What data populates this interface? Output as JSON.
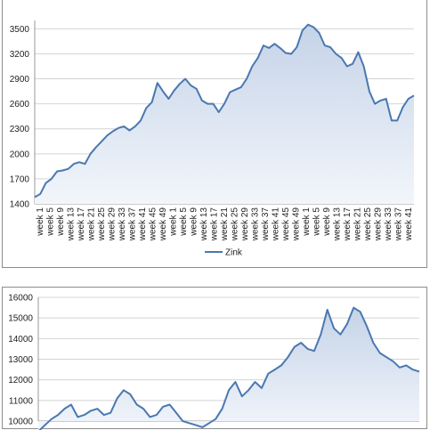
{
  "colors": {
    "line": "#4a78b0",
    "area_top": "#c5d3e8",
    "area_bottom": "#f2f6fb",
    "grid": "#d4d4d4",
    "axis": "#9a9a9a"
  },
  "chart_data": [
    {
      "type": "area",
      "title": "",
      "xlabel": "",
      "ylabel": "",
      "ylim": [
        1400,
        3600
      ],
      "yticks": [
        1400,
        1700,
        2000,
        2300,
        2600,
        2900,
        3200,
        3500
      ],
      "grid": true,
      "legend": "bottom",
      "x_tick_labels": [
        "week  1",
        "week  5",
        "week  9",
        "week  13",
        "week  17",
        "week  21",
        "week  25",
        "week  29",
        "week  33",
        "week  37",
        "week  41",
        "week  45",
        "week  49",
        "week  1",
        "week  5",
        "week  9",
        "week  13",
        "week  17",
        "week  21",
        "week  25",
        "week  29",
        "week  33",
        "week  37",
        "week  41",
        "week  45",
        "week  49",
        "week  1",
        "week  5",
        "week  9",
        "week  13",
        "week  17",
        "week  21",
        "week  25",
        "week  29",
        "week  33",
        "week  37",
        "week  41"
      ],
      "series": [
        {
          "name": "Zink",
          "values": [
            1480,
            1520,
            1650,
            1700,
            1790,
            1800,
            1820,
            1880,
            1900,
            1880,
            2000,
            2080,
            2150,
            2220,
            2270,
            2310,
            2330,
            2280,
            2330,
            2400,
            2550,
            2620,
            2850,
            2750,
            2660,
            2760,
            2840,
            2900,
            2820,
            2780,
            2640,
            2600,
            2600,
            2500,
            2600,
            2740,
            2770,
            2800,
            2900,
            3050,
            3150,
            3300,
            3270,
            3320,
            3270,
            3210,
            3200,
            3280,
            3480,
            3550,
            3520,
            3450,
            3300,
            3280,
            3200,
            3150,
            3050,
            3080,
            3220,
            3050,
            2750,
            2600,
            2640,
            2660,
            2400,
            2400,
            2560,
            2660,
            2700
          ]
        }
      ]
    },
    {
      "type": "area",
      "title": "",
      "xlabel": "",
      "ylabel": "",
      "ylim": [
        10000,
        16000
      ],
      "yticks": [
        10000,
        11000,
        12000,
        13000,
        14000,
        15000,
        16000
      ],
      "grid": true,
      "series": [
        {
          "values": [
            9500,
            9800,
            10100,
            10300,
            10600,
            10800,
            10200,
            10300,
            10500,
            10600,
            10300,
            10400,
            11100,
            11500,
            11300,
            10800,
            10600,
            10200,
            10300,
            10700,
            10800,
            10400,
            10000,
            9900,
            9800,
            9700,
            9900,
            10100,
            10600,
            11500,
            11900,
            11200,
            11500,
            11900,
            11600,
            12300,
            12500,
            12700,
            13100,
            13600,
            13800,
            13500,
            13400,
            14200,
            15400,
            14500,
            14200,
            14700,
            15500,
            15300,
            14600,
            13800,
            13300,
            13100,
            12900,
            12600,
            12700,
            12500,
            12400
          ]
        }
      ]
    }
  ]
}
